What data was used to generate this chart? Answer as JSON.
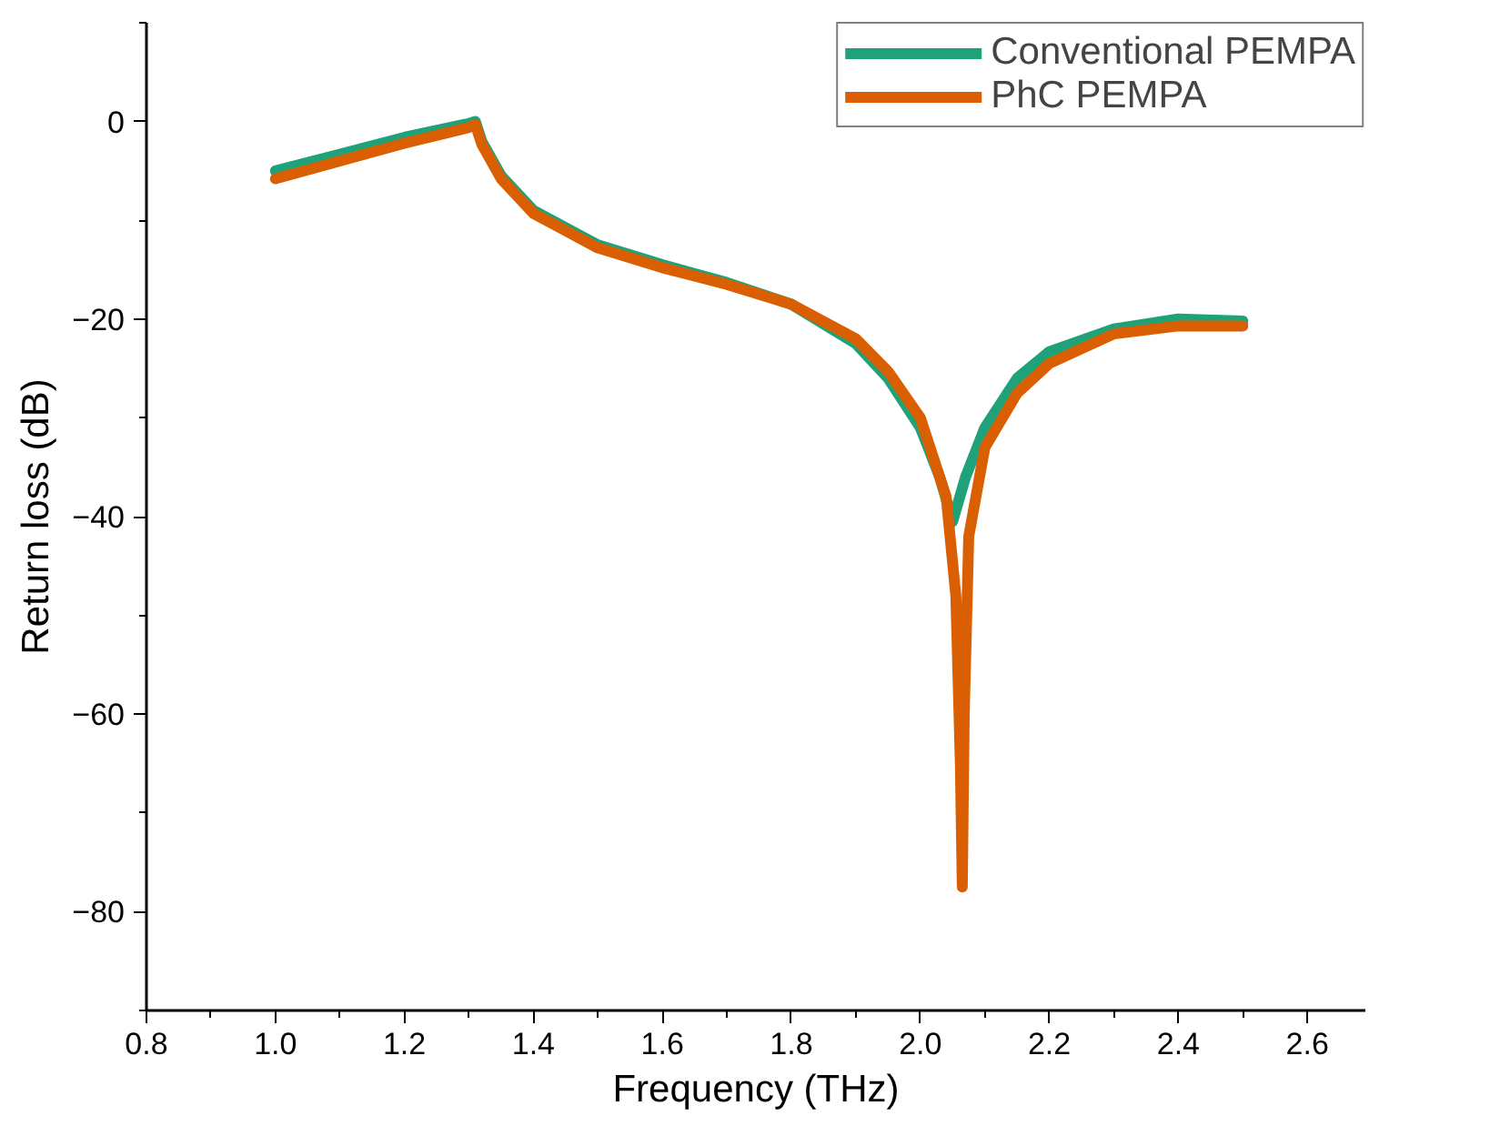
{
  "chart_data": {
    "type": "line",
    "xlabel": "Frequency (THz)",
    "ylabel": "Return loss (dB)",
    "xlim": [
      0.8,
      2.69
    ],
    "ylim": [
      -90,
      10
    ],
    "xticks": [
      0.8,
      {
        "value": 1,
        "label": "1.0"
      },
      1.2,
      1.4,
      1.6,
      1.8,
      {
        "value": 2,
        "label": "2.0"
      },
      2.2,
      2.4,
      2.6
    ],
    "yticks": [
      -80,
      -60,
      -40,
      -20,
      0
    ],
    "grid": false,
    "legend": "top right",
    "line_style": "solid",
    "series": [
      {
        "name": "Conventional PEMPA",
        "color": "#1fa27a",
        "x": [
          1.0,
          1.1,
          1.2,
          1.3,
          1.31,
          1.32,
          1.35,
          1.4,
          1.5,
          1.6,
          1.7,
          1.8,
          1.9,
          1.95,
          2.0,
          2.03,
          2.05,
          2.07,
          2.1,
          2.15,
          2.2,
          2.3,
          2.4,
          2.5
        ],
        "values": [
          -5,
          -3.3,
          -1.6,
          -0.2,
          0,
          -2,
          -5.5,
          -9,
          -12.5,
          -14.5,
          -16.3,
          -18.5,
          -22.5,
          -26,
          -31,
          -36,
          -40.5,
          -36,
          -31,
          -26,
          -23.3,
          -21,
          -20,
          -20.2
        ]
      },
      {
        "name": "PhC PEMPA",
        "color": "#d95f02",
        "x": [
          1.0,
          1.1,
          1.2,
          1.3,
          1.31,
          1.32,
          1.35,
          1.4,
          1.5,
          1.6,
          1.7,
          1.8,
          1.9,
          1.95,
          2.0,
          2.04,
          2.055,
          2.062,
          2.065,
          2.068,
          2.075,
          2.1,
          2.15,
          2.2,
          2.3,
          2.4,
          2.5
        ],
        "values": [
          -5.8,
          -4,
          -2.2,
          -0.6,
          -0.3,
          -2.3,
          -5.8,
          -9.3,
          -12.8,
          -14.8,
          -16.5,
          -18.5,
          -22,
          -25.3,
          -30,
          -38,
          -48,
          -65,
          -77.5,
          -60,
          -42,
          -33,
          -27.5,
          -24.5,
          -21.5,
          -20.7,
          -20.7
        ]
      }
    ]
  }
}
